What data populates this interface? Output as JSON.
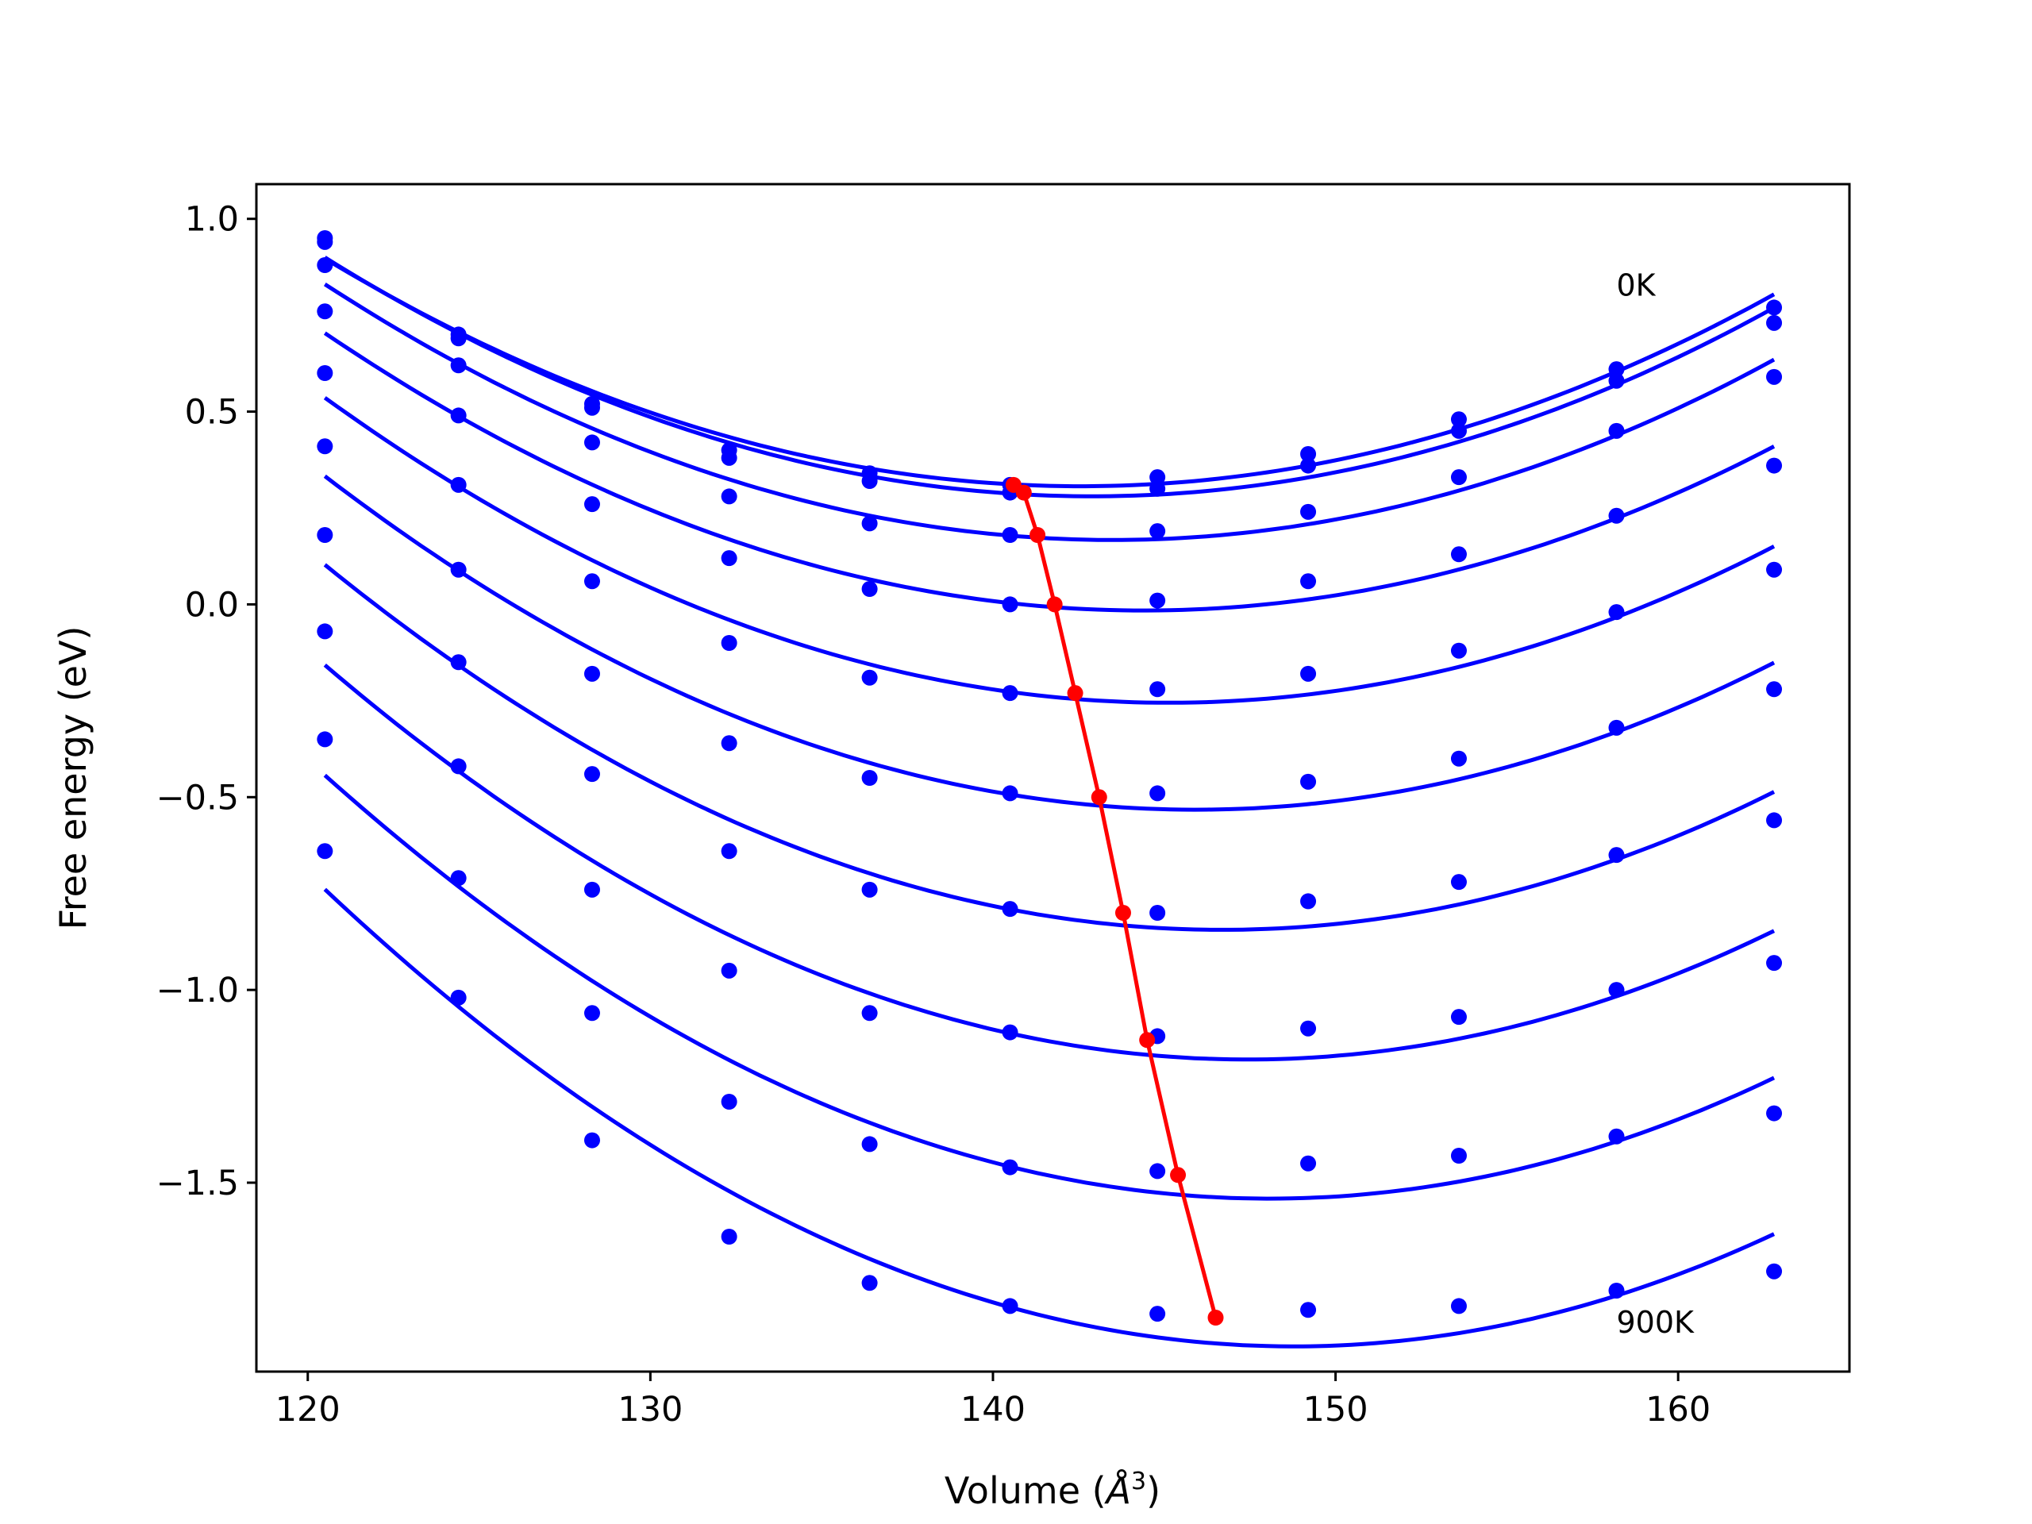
{
  "chart_data": {
    "type": "line",
    "title": "",
    "xlabel": "Volume (",
    "xlabel_symbol": "Å",
    "xlabel_exponent": "3",
    "xlabel_close": ")",
    "ylabel": "Free energy (eV)",
    "xlim": [
      118.5,
      165.0
    ],
    "ylim": [
      -1.99,
      1.09
    ],
    "xticks": [
      {
        "value": 120,
        "label": "120"
      },
      {
        "value": 130,
        "label": "130"
      },
      {
        "value": 140,
        "label": "140"
      },
      {
        "value": 150,
        "label": "150"
      },
      {
        "value": 160,
        "label": "160"
      }
    ],
    "yticks": [
      {
        "value": 1.0,
        "label": "1.0"
      },
      {
        "value": 0.5,
        "label": "0.5"
      },
      {
        "value": 0.0,
        "label": "0.0"
      },
      {
        "value": -0.5,
        "label": "−0.5"
      },
      {
        "value": -1.0,
        "label": "−1.0"
      },
      {
        "value": -1.5,
        "label": "−1.5"
      }
    ],
    "grid": false,
    "legend": "none",
    "colors": {
      "curves": "#0000ff",
      "minima": "#ff0000",
      "frame": "#000000"
    },
    "x": [
      120.5,
      124.4,
      128.3,
      132.3,
      136.4,
      140.5,
      144.8,
      149.2,
      153.6,
      158.2,
      162.8
    ],
    "series": [
      {
        "values": [
          0.94,
          0.7,
          0.52,
          0.4,
          0.34,
          0.31,
          0.33,
          0.39,
          0.48,
          0.61,
          0.77
        ],
        "minimum": {
          "x": 140.6,
          "y": 0.31
        }
      },
      {
        "values": [
          0.95,
          0.69,
          0.51,
          0.38,
          0.32,
          0.29,
          0.3,
          0.36,
          0.45,
          0.58,
          0.73
        ],
        "minimum": {
          "x": 140.9,
          "y": 0.29
        }
      },
      {
        "values": [
          0.88,
          0.62,
          0.42,
          0.28,
          0.21,
          0.18,
          0.19,
          0.24,
          0.33,
          0.45,
          0.59
        ],
        "minimum": {
          "x": 141.3,
          "y": 0.18
        }
      },
      {
        "values": [
          0.76,
          0.49,
          0.26,
          0.12,
          0.04,
          0.0,
          0.01,
          0.06,
          0.13,
          0.23,
          0.36
        ],
        "minimum": {
          "x": 141.8,
          "y": 0.0
        }
      },
      {
        "values": [
          0.6,
          0.31,
          0.06,
          -0.1,
          -0.19,
          -0.23,
          -0.22,
          -0.18,
          -0.12,
          -0.02,
          0.09
        ],
        "minimum": {
          "x": 142.4,
          "y": -0.23
        }
      },
      {
        "values": [
          0.41,
          0.09,
          -0.18,
          -0.36,
          -0.45,
          -0.49,
          -0.49,
          -0.46,
          -0.4,
          -0.32,
          -0.22
        ],
        "minimum": {
          "x": 143.1,
          "y": -0.5
        }
      },
      {
        "values": [
          0.18,
          -0.15,
          -0.44,
          -0.64,
          -0.74,
          -0.79,
          -0.8,
          -0.77,
          -0.72,
          -0.65,
          -0.56
        ],
        "minimum": {
          "x": 143.8,
          "y": -0.8
        }
      },
      {
        "values": [
          -0.07,
          -0.42,
          -0.74,
          -0.95,
          -1.06,
          -1.11,
          -1.12,
          -1.1,
          -1.07,
          -1.0,
          -0.93
        ],
        "minimum": {
          "x": 144.5,
          "y": -1.13
        }
      },
      {
        "values": [
          -0.35,
          -0.71,
          -1.06,
          -1.29,
          -1.4,
          -1.46,
          -1.47,
          -1.45,
          -1.43,
          -1.38,
          -1.32
        ],
        "minimum": {
          "x": 145.4,
          "y": -1.48
        }
      },
      {
        "values": [
          -0.64,
          -1.02,
          -1.39,
          -1.64,
          -1.76,
          -1.82,
          -1.84,
          -1.83,
          -1.82,
          -1.78,
          -1.73
        ],
        "minimum": {
          "x": 146.5,
          "y": -1.85
        }
      }
    ],
    "annotations": [
      {
        "text": "0K",
        "x": 158.2,
        "y": 0.83
      },
      {
        "text": "900K",
        "x": 158.2,
        "y": -1.86
      }
    ]
  }
}
